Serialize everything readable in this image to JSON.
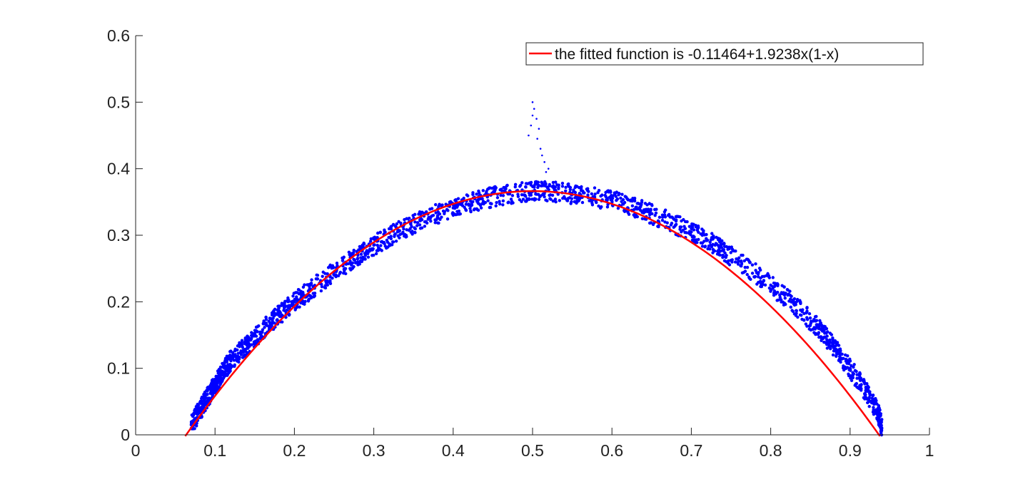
{
  "chart_data": {
    "type": "scatter",
    "title": "",
    "xlabel": "",
    "ylabel": "",
    "xlim": [
      0,
      1
    ],
    "ylim": [
      0,
      0.6
    ],
    "x_ticks": [
      0,
      0.1,
      0.2,
      0.3,
      0.4,
      0.5,
      0.6,
      0.7,
      0.8,
      0.9,
      1
    ],
    "x_tick_labels": [
      "0",
      "0.1",
      "0.2",
      "0.3",
      "0.4",
      "0.5",
      "0.6",
      "0.7",
      "0.8",
      "0.9",
      "1"
    ],
    "y_ticks": [
      0,
      0.1,
      0.2,
      0.3,
      0.4,
      0.5,
      0.6
    ],
    "y_tick_labels": [
      "0",
      "0.1",
      "0.2",
      "0.3",
      "0.4",
      "0.5",
      "0.6"
    ],
    "grid": false,
    "legend_position": "top-right",
    "series": [
      {
        "kind": "scatter",
        "color": "#0000ff",
        "description_points": "dense noisy band around the fitted parabola",
        "points": [
          [
            0.07,
            0.015
          ],
          [
            0.08,
            0.035
          ],
          [
            0.09,
            0.055
          ],
          [
            0.1,
            0.075
          ],
          [
            0.11,
            0.095
          ],
          [
            0.12,
            0.112
          ],
          [
            0.14,
            0.135
          ],
          [
            0.16,
            0.158
          ],
          [
            0.18,
            0.18
          ],
          [
            0.2,
            0.2
          ],
          [
            0.22,
            0.218
          ],
          [
            0.25,
            0.245
          ],
          [
            0.28,
            0.27
          ],
          [
            0.3,
            0.285
          ],
          [
            0.33,
            0.305
          ],
          [
            0.36,
            0.323
          ],
          [
            0.4,
            0.341
          ],
          [
            0.43,
            0.352
          ],
          [
            0.46,
            0.36
          ],
          [
            0.5,
            0.366
          ],
          [
            0.53,
            0.365
          ],
          [
            0.56,
            0.361
          ],
          [
            0.6,
            0.352
          ],
          [
            0.63,
            0.342
          ],
          [
            0.66,
            0.327
          ],
          [
            0.7,
            0.305
          ],
          [
            0.73,
            0.285
          ],
          [
            0.76,
            0.261
          ],
          [
            0.8,
            0.225
          ],
          [
            0.83,
            0.195
          ],
          [
            0.86,
            0.16
          ],
          [
            0.88,
            0.132
          ],
          [
            0.9,
            0.1
          ],
          [
            0.92,
            0.065
          ],
          [
            0.935,
            0.035
          ],
          [
            0.94,
            0.01
          ]
        ],
        "outliers": [
          [
            0.5,
            0.5
          ],
          [
            0.502,
            0.49
          ],
          [
            0.505,
            0.475
          ],
          [
            0.508,
            0.46
          ],
          [
            0.506,
            0.445
          ],
          [
            0.51,
            0.43
          ],
          [
            0.512,
            0.42
          ],
          [
            0.515,
            0.41
          ],
          [
            0.52,
            0.4
          ],
          [
            0.517,
            0.395
          ],
          [
            0.5,
            0.48
          ],
          [
            0.498,
            0.465
          ],
          [
            0.495,
            0.45
          ]
        ]
      },
      {
        "name": "the fitted function is -0.11464+1.9238x(1-x)",
        "kind": "line",
        "color": "#ff0000",
        "intercept": -0.11464,
        "coefficient": 1.9238,
        "x_range": [
          0.0625,
          0.9375
        ]
      }
    ]
  }
}
